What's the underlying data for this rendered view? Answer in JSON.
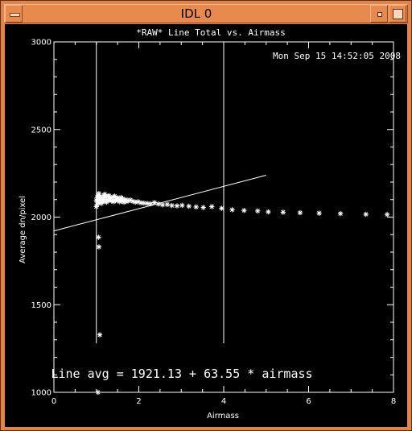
{
  "window": {
    "title": "IDL 0"
  },
  "plot": {
    "timestamp": "Mon Sep 15 14:52:05 2008",
    "annotation": "Line avg = 1921.13 + 63.55 * airmass"
  },
  "chart_data": {
    "type": "scatter",
    "title": "*RAW* Line Total vs. Airmass",
    "xlabel": "Airmass",
    "ylabel": "Average dn/pixel",
    "xlim": [
      0,
      8
    ],
    "ylim": [
      1000,
      3000
    ],
    "x_ticks": [
      "0",
      "2",
      "4",
      "6",
      "8"
    ],
    "y_ticks": [
      "1000",
      "1500",
      "2000",
      "2500",
      "3000"
    ],
    "marker": "*",
    "color": "#ffffff",
    "grid": false,
    "fit_line": {
      "intercept": 1921.13,
      "slope": 63.55,
      "x_range": [
        0,
        5.0
      ]
    },
    "vertical_lines": [
      1.0,
      4.0
    ],
    "vertical_line_range": [
      1280,
      3000
    ],
    "series": [
      {
        "x": [
          1.0,
          1.02,
          1.04,
          1.06,
          1.08,
          1.1,
          1.12,
          1.15,
          1.18,
          1.2,
          1.22,
          1.25,
          1.28,
          1.3,
          1.33,
          1.36,
          1.4,
          1.43,
          1.46,
          1.5,
          1.54,
          1.58,
          1.62,
          1.66,
          1.7,
          1.75,
          1.8,
          1.86,
          1.92,
          1.98,
          2.05,
          2.12,
          2.2,
          2.28,
          2.37,
          2.46,
          2.56,
          2.67,
          2.78,
          2.9,
          3.02,
          3.18,
          3.35,
          3.52,
          3.72,
          3.95,
          4.2,
          4.48,
          4.8,
          5.05,
          5.4,
          5.8,
          6.25,
          6.75,
          7.35,
          7.85,
          1.0,
          1.02,
          1.04,
          1.06,
          1.08,
          1.1,
          1.12,
          1.14,
          1.16,
          1.18,
          1.2,
          1.24,
          1.28,
          1.32,
          1.36,
          1.4,
          1.45,
          1.5,
          1.55,
          1.6,
          1.65,
          1.7,
          1.05,
          1.06,
          1.08,
          1.04
        ],
        "y": [
          2095,
          2110,
          2125,
          2135,
          2118,
          2105,
          2090,
          2112,
          2125,
          2130,
          2115,
          2100,
          2118,
          2122,
          2110,
          2098,
          2115,
          2120,
          2108,
          2110,
          2100,
          2112,
          2105,
          2095,
          2100,
          2092,
          2098,
          2090,
          2085,
          2088,
          2082,
          2080,
          2078,
          2076,
          2083,
          2075,
          2070,
          2072,
          2066,
          2064,
          2067,
          2062,
          2058,
          2055,
          2060,
          2050,
          2042,
          2038,
          2035,
          2030,
          2028,
          2025,
          2022,
          2020,
          2016,
          2015,
          2060,
          2072,
          2082,
          2095,
          2100,
          2088,
          2078,
          2092,
          2100,
          2096,
          2090,
          2085,
          2095,
          2100,
          2092,
          2088,
          2093,
          2096,
          2088,
          2092,
          2085,
          2090,
          1885,
          1830,
          1328,
          1000
        ]
      }
    ]
  }
}
